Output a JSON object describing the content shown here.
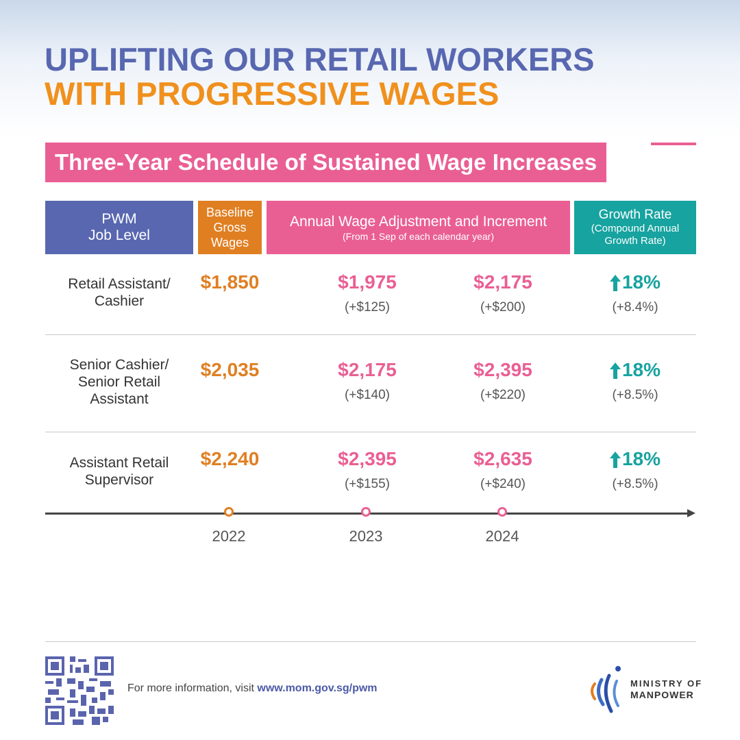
{
  "title": {
    "line1": "UPLIFTING OUR RETAIL WORKERS",
    "line2": "WITH PROGRESSIVE WAGES"
  },
  "subtitle": "Three-Year Schedule of Sustained Wage Increases",
  "header": {
    "pwm_line1": "PWM",
    "pwm_line2": "Job Level",
    "baseline_line1": "Baseline",
    "baseline_line2": "Gross",
    "baseline_line3": "Wages",
    "annual_main": "Annual Wage Adjustment and Increment",
    "annual_sub": "(From 1 Sep of each calendar year)",
    "growth_main": "Growth Rate",
    "growth_sub1": "(Compound Annual",
    "growth_sub2": "Growth Rate)"
  },
  "rows": [
    {
      "job_line1": "Retail Assistant/",
      "job_line2": "Cashier",
      "job_line3": "",
      "baseline": "$1,850",
      "y2023": "$1,975",
      "y2023_inc": "(+$125)",
      "y2024": "$2,175",
      "y2024_inc": "(+$200)",
      "growth": "18%",
      "cagr": "(+8.4%)"
    },
    {
      "job_line1": "Senior Cashier/",
      "job_line2": "Senior Retail",
      "job_line3": "Assistant",
      "baseline": "$2,035",
      "y2023": "$2,175",
      "y2023_inc": "(+$140)",
      "y2024": "$2,395",
      "y2024_inc": "(+$220)",
      "growth": "18%",
      "cagr": "(+8.5%)"
    },
    {
      "job_line1": "Assistant Retail",
      "job_line2": "Supervisor",
      "job_line3": "",
      "baseline": "$2,240",
      "y2023": "$2,395",
      "y2023_inc": "(+$155)",
      "y2024": "$2,635",
      "y2024_inc": "(+$240)",
      "growth": "18%",
      "cagr": "(+8.5%)"
    }
  ],
  "timeline": {
    "years": [
      "2022",
      "2023",
      "2024"
    ]
  },
  "footer": {
    "info_text": "For more information, visit",
    "url": "www.mom.gov.sg/pwm",
    "logo_line1": "MINISTRY OF",
    "logo_line2": "MANPOWER"
  },
  "colors": {
    "blue": "#5867b0",
    "orange": "#e07f22",
    "pink": "#ea5f93",
    "teal": "#17a3a0"
  },
  "icons": [
    "up-arrow-icon",
    "qr-code-icon",
    "mom-logo-icon",
    "timeline-arrow-icon"
  ]
}
